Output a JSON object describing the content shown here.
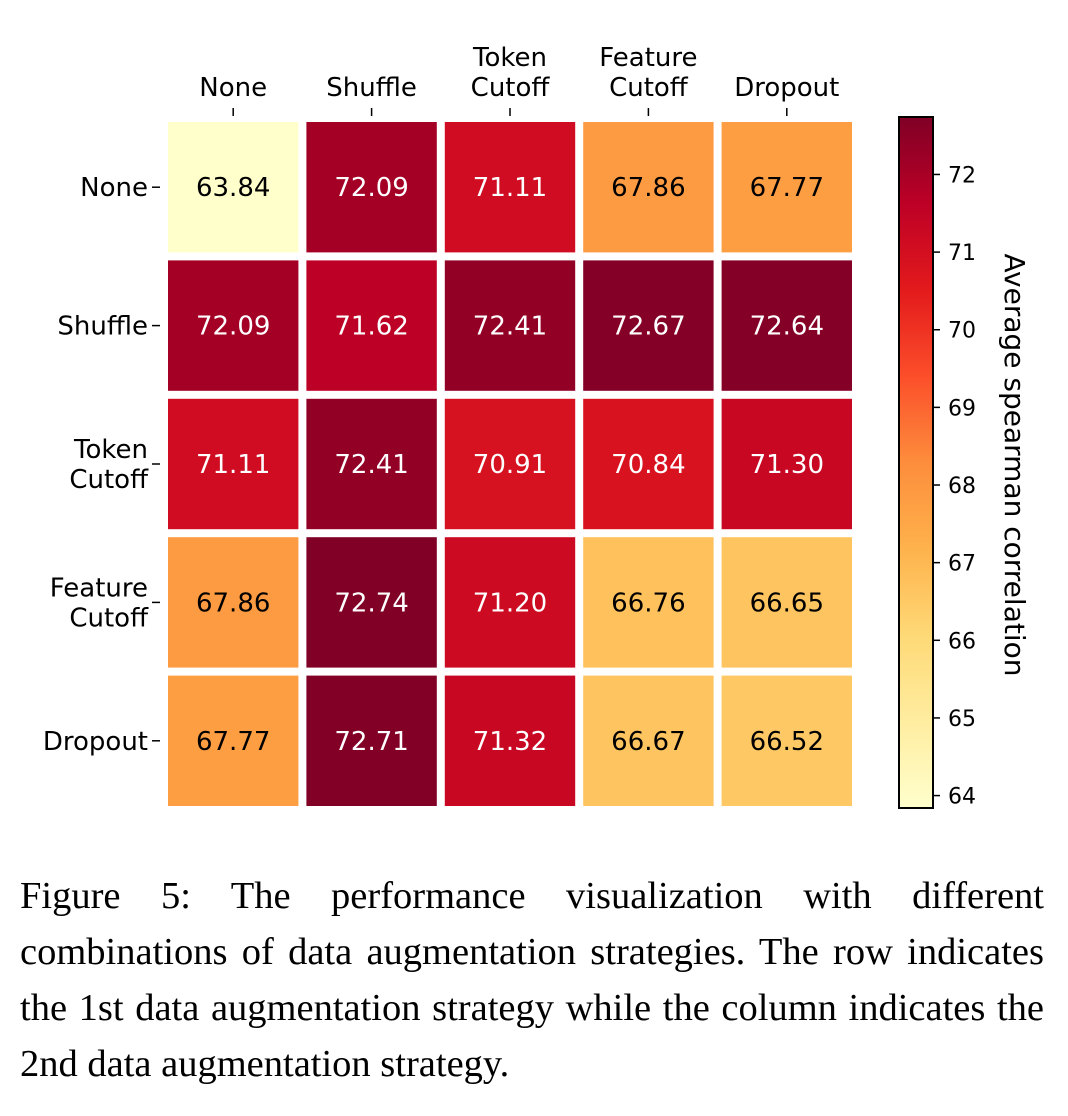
{
  "chart_data": {
    "type": "heatmap",
    "title": "",
    "xlabel": "",
    "ylabel": "",
    "x_tick_position": "top",
    "x_categories": [
      [
        "None"
      ],
      [
        "Shuffle"
      ],
      [
        "Token",
        "Cutoff"
      ],
      [
        "Feature",
        "Cutoff"
      ],
      [
        "Dropout"
      ]
    ],
    "y_categories": [
      [
        "None"
      ],
      [
        "Shuffle"
      ],
      [
        "Token",
        "Cutoff"
      ],
      [
        "Feature",
        "Cutoff"
      ],
      [
        "Dropout"
      ]
    ],
    "values": [
      [
        63.84,
        72.09,
        71.11,
        67.86,
        67.77
      ],
      [
        72.09,
        71.62,
        72.41,
        72.67,
        72.64
      ],
      [
        71.11,
        72.41,
        70.91,
        70.84,
        71.3
      ],
      [
        67.86,
        72.74,
        71.2,
        66.76,
        66.65
      ],
      [
        67.77,
        72.71,
        71.32,
        66.67,
        66.52
      ]
    ],
    "colormap": "YlOrRd",
    "colormap_stops": [
      "#ffffcc",
      "#ffeda0",
      "#fed976",
      "#feb24c",
      "#fd8d3c",
      "#fc4e2a",
      "#e31a1c",
      "#bd0026",
      "#800026"
    ],
    "colorbar": {
      "label": "Average spearman correlation",
      "range": [
        63.84,
        72.74
      ],
      "ticks": [
        64,
        65,
        66,
        67,
        68,
        69,
        70,
        71,
        72
      ],
      "placement": "right"
    },
    "annotation_text_colors": {
      "light_cells": "#000000",
      "dark_cells": "#ffffff"
    }
  },
  "caption": "Figure 5: The performance visualization with different combinations of data augmentation strategies. The row indicates the 1st data augmentation strategy while the column indicates the 2nd data augmentation strategy."
}
